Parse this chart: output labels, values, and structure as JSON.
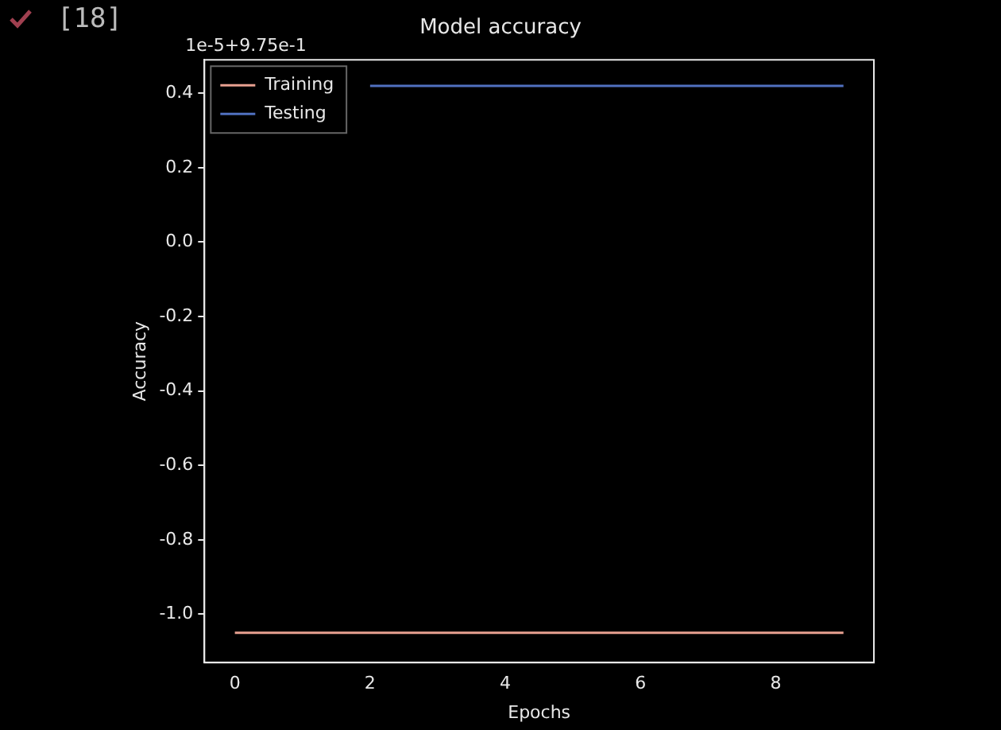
{
  "chart_data": {
    "type": "line",
    "title": "Model accuracy",
    "xlabel": "Epochs",
    "ylabel": "Accuracy",
    "x": [
      0,
      1,
      2,
      3,
      4,
      5,
      6,
      7,
      8,
      9
    ],
    "series": [
      {
        "name": "Training",
        "color": "#e8a090",
        "values": [
          -1.05,
          -1.05,
          -1.05,
          -1.05,
          -1.05,
          -1.05,
          -1.05,
          -1.05,
          -1.05,
          -1.05
        ]
      },
      {
        "name": "Testing",
        "color": "#5070c0",
        "values": [
          null,
          null,
          0.42,
          0.42,
          0.42,
          0.42,
          0.42,
          0.42,
          0.42,
          0.42
        ]
      }
    ],
    "xlim": [
      -0.45,
      9.45
    ],
    "xticks": [
      0,
      2,
      4,
      6,
      8
    ],
    "ylim": [
      -1.13,
      0.49
    ],
    "yticks": [
      {
        "value": 0.4,
        "label": "0.4"
      },
      {
        "value": 0.2,
        "label": "0.2"
      },
      {
        "value": 0,
        "label": "0.0"
      },
      {
        "value": -0.2,
        "label": "-0.2"
      },
      {
        "value": -0.4,
        "label": "-0.4"
      },
      {
        "value": -0.6,
        "label": "-0.6"
      },
      {
        "value": -0.8,
        "label": "-0.8"
      },
      {
        "value": -1.0,
        "label": "-1.0"
      }
    ],
    "annotations": [
      "1e-5+9.75e-1",
      "[18]"
    ],
    "grid": false,
    "legend": "top left",
    "marker": "none",
    "line_style": "solid"
  }
}
